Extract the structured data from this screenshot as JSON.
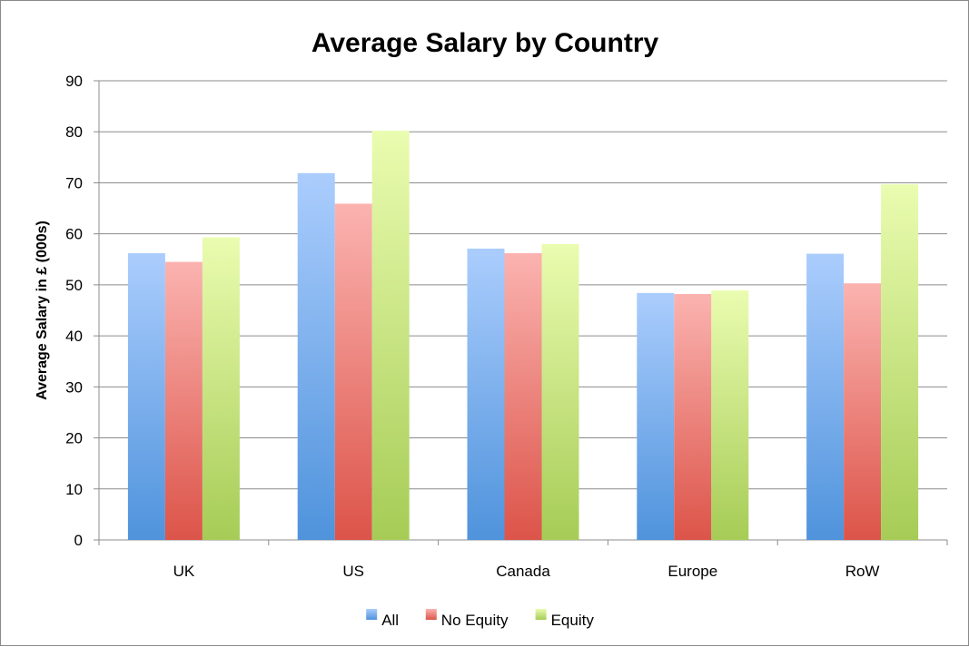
{
  "chart_data": {
    "type": "bar",
    "title": "Average Salary by Country",
    "xlabel": "",
    "ylabel": "Average Salary in £ (000s)",
    "categories": [
      "UK",
      "US",
      "Canada",
      "Europe",
      "RoW"
    ],
    "series": [
      {
        "name": "All",
        "values": [
          56.2,
          71.9,
          57.1,
          48.4,
          56.1
        ],
        "color": "#5b9bdf"
      },
      {
        "name": "No Equity",
        "values": [
          54.5,
          65.9,
          56.2,
          48.2,
          50.3
        ],
        "color": "#e05a50"
      },
      {
        "name": "Equity",
        "values": [
          59.3,
          80.2,
          58.0,
          48.9,
          69.7
        ],
        "color": "#a8cc55"
      }
    ],
    "ylim": [
      0,
      90
    ],
    "yticks": [
      0,
      10,
      20,
      30,
      40,
      50,
      60,
      70,
      80,
      90
    ],
    "grid": true,
    "legend_position": "bottom"
  }
}
